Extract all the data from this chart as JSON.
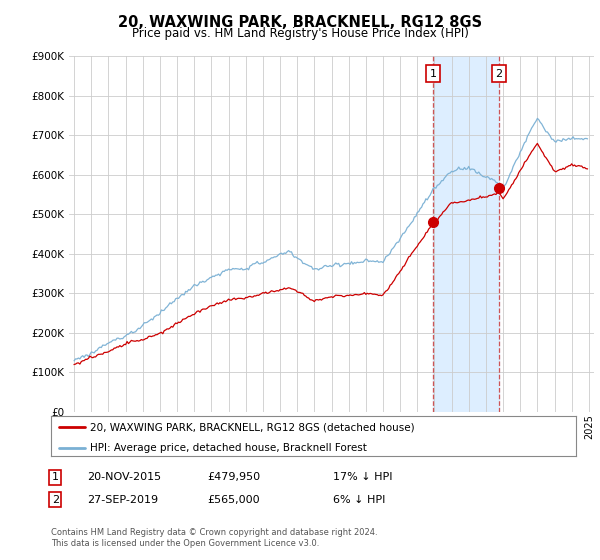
{
  "title": "20, WAXWING PARK, BRACKNELL, RG12 8GS",
  "subtitle": "Price paid vs. HM Land Registry's House Price Index (HPI)",
  "legend_line1": "20, WAXWING PARK, BRACKNELL, RG12 8GS (detached house)",
  "legend_line2": "HPI: Average price, detached house, Bracknell Forest",
  "transaction1_date": "20-NOV-2015",
  "transaction1_price": 479950,
  "transaction1_note": "17% ↓ HPI",
  "transaction1_year": 2015.92,
  "transaction2_date": "27-SEP-2019",
  "transaction2_price": 565000,
  "transaction2_note": "6% ↓ HPI",
  "transaction2_year": 2019.75,
  "footer": "Contains HM Land Registry data © Crown copyright and database right 2024.\nThis data is licensed under the Open Government Licence v3.0.",
  "hpi_color": "#7ab0d4",
  "price_color": "#cc0000",
  "highlight_color": "#ddeeff",
  "ylim_min": 0,
  "ylim_max": 900000,
  "xmin": 1994.7,
  "xmax": 2025.3
}
